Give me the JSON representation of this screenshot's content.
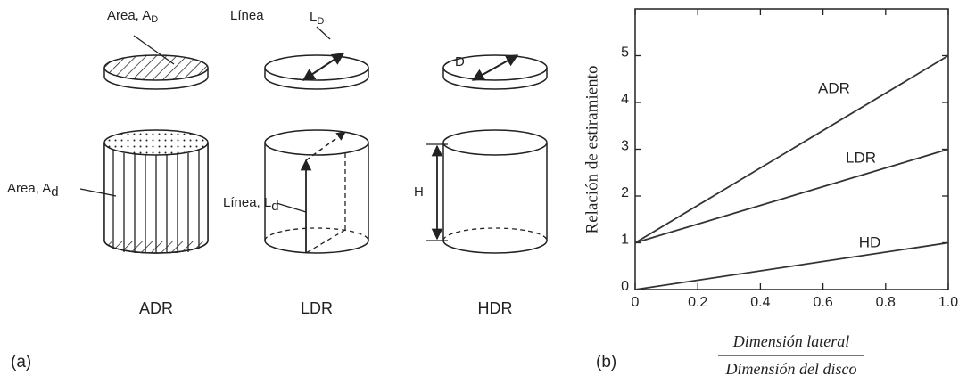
{
  "diagram": {
    "area_D": {
      "text": "Area, A",
      "sub": "D"
    },
    "linea_top": "Línea",
    "L_D": {
      "text": "L",
      "sub": "D"
    },
    "D": "D",
    "area_d": {
      "text": "Area, A",
      "sub": "d"
    },
    "linea_d": {
      "text": "Línea, L",
      "sub": "d"
    },
    "H": "H",
    "captions": [
      "ADR",
      "LDR",
      "HDR"
    ],
    "panel_a": "(a)",
    "panel_b": "(b)"
  },
  "chart_data": {
    "type": "line",
    "y_label": "Relación de estiramiento",
    "x_label": {
      "numerator": "Dimensión lateral",
      "denominator": "Dimensión del disco"
    },
    "x": [
      0,
      1
    ],
    "series": [
      {
        "name": "ADR",
        "color": "#333333",
        "values": [
          1,
          5
        ]
      },
      {
        "name": "LDR",
        "color": "#333333",
        "values": [
          1,
          3
        ]
      },
      {
        "name": "HD",
        "color": "#333333",
        "values": [
          0,
          1
        ]
      }
    ],
    "xlim": [
      0,
      1
    ],
    "ylim": [
      0,
      6
    ],
    "xticks": [
      0,
      0.2,
      0.4,
      0.6,
      0.8,
      {
        "value": 1,
        "label": "1.0"
      }
    ],
    "yticks": [
      0,
      1,
      2,
      3,
      4,
      5
    ]
  }
}
